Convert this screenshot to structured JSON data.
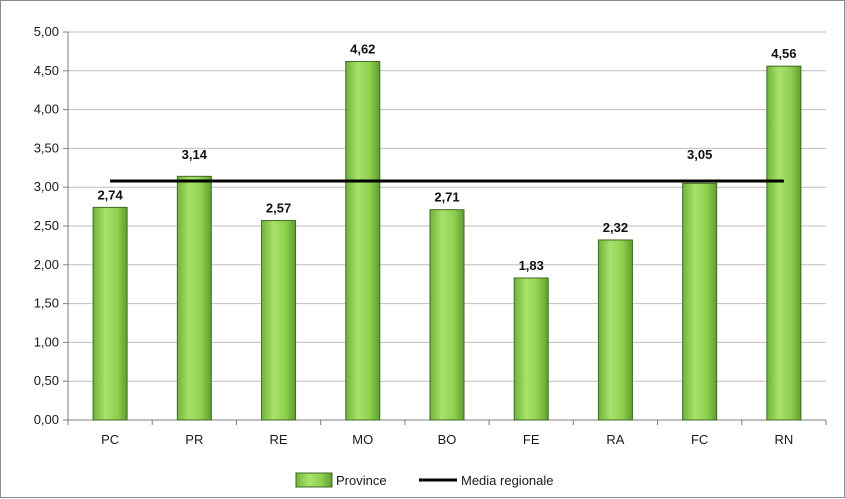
{
  "chart_data": {
    "type": "bar",
    "categories": [
      "PC",
      "PR",
      "RE",
      "MO",
      "BO",
      "FE",
      "RA",
      "FC",
      "RN"
    ],
    "series": [
      {
        "name": "Province",
        "values": [
          2.74,
          3.14,
          2.57,
          4.62,
          2.71,
          1.83,
          2.32,
          3.05,
          4.56
        ]
      }
    ],
    "data_labels": [
      "2,74",
      "3,14",
      "2,57",
      "4,62",
      "2,71",
      "1,83",
      "2,32",
      "3,05",
      "4,56"
    ],
    "reference_line": {
      "name": "Media regionale",
      "value": 3.08
    },
    "yticks": [
      "0,00",
      "0,50",
      "1,00",
      "1,50",
      "2,00",
      "2,50",
      "3,00",
      "3,50",
      "4,00",
      "4,50",
      "5,00"
    ],
    "ylim": [
      0,
      5
    ],
    "grid": true,
    "legend_position": "bottom",
    "title": "",
    "xlabel": "",
    "ylabel": "",
    "colors": {
      "bar_fill": "#8fd14f",
      "bar_stroke": "#3d6b1f",
      "line": "#000000",
      "grid": "#bfbfbf"
    }
  },
  "legend": {
    "bar_label": "Province",
    "line_label": "Media regionale"
  }
}
